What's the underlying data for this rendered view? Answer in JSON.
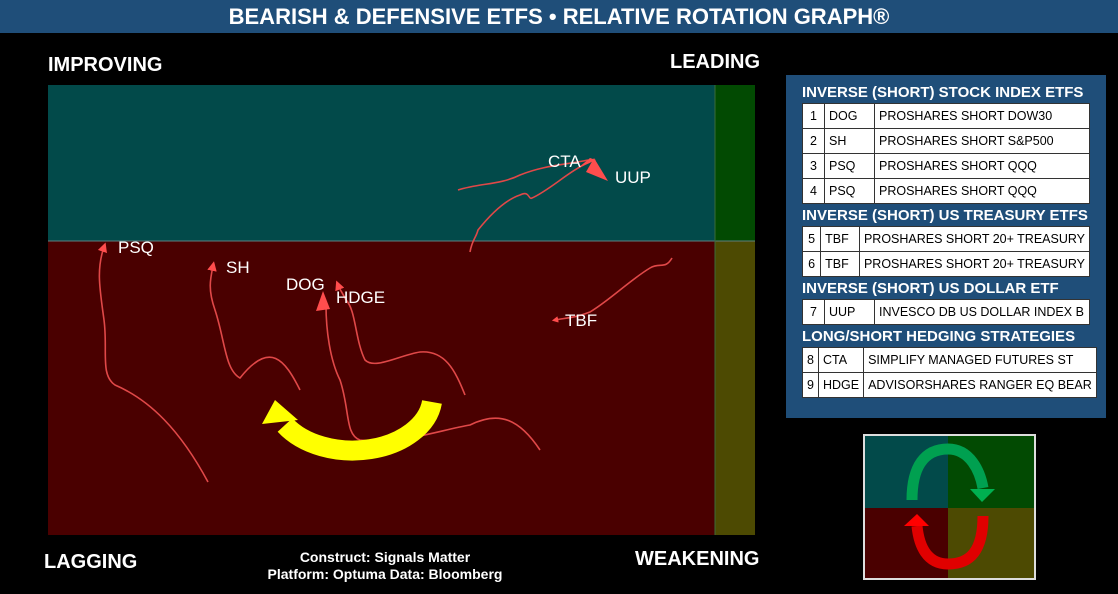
{
  "title": "BEARISH & DEFENSIVE ETFS • RELATIVE ROTATION GRAPH®",
  "quadrants": {
    "improving": "IMPROVING",
    "leading": "LEADING",
    "lagging": "LAGGING",
    "weakening": "WEAKENING"
  },
  "credits": {
    "line1": "Construct: Signals Matter",
    "line2": "Platform: Optuma  Data: Bloomberg"
  },
  "colors": {
    "improving": "#024a4a",
    "leading": "#024a02",
    "lagging": "#4a0000",
    "weakening": "#4d4a02",
    "tail": "#ff4d4d",
    "rotation_arrow": "#ffff00",
    "panel": "#1f4e79"
  },
  "chart_data": {
    "type": "scatter",
    "title": "Relative Rotation Graph",
    "quadrants": [
      "IMPROVING",
      "LEADING",
      "LAGGING",
      "WEAKENING"
    ],
    "series": [
      {
        "name": "PSQ",
        "quadrant": "LAGGING"
      },
      {
        "name": "SH",
        "quadrant": "LAGGING"
      },
      {
        "name": "DOG",
        "quadrant": "LAGGING"
      },
      {
        "name": "HDGE",
        "quadrant": "LAGGING"
      },
      {
        "name": "TBF",
        "quadrant": "LAGGING"
      },
      {
        "name": "CTA",
        "quadrant": "IMPROVING"
      },
      {
        "name": "UUP",
        "quadrant": "IMPROVING"
      }
    ],
    "grid": false
  },
  "legend": {
    "groups": [
      {
        "title": "INVERSE (SHORT) STOCK INDEX ETFS",
        "rows": [
          {
            "n": "1",
            "ticker": "DOG",
            "name": "PROSHARES SHORT DOW30"
          },
          {
            "n": "2",
            "ticker": "SH",
            "name": "PROSHARES SHORT S&P500"
          },
          {
            "n": "3",
            "ticker": "PSQ",
            "name": "PROSHARES SHORT QQQ"
          },
          {
            "n": "4",
            "ticker": "PSQ",
            "name": "PROSHARES SHORT QQQ"
          }
        ]
      },
      {
        "title": "INVERSE (SHORT) US TREASURY ETFS",
        "rows": [
          {
            "n": "5",
            "ticker": "TBF",
            "name": "PROSHARES SHORT 20+ TREASURY"
          },
          {
            "n": "6",
            "ticker": "TBF",
            "name": "PROSHARES SHORT 20+ TREASURY"
          }
        ]
      },
      {
        "title": "INVERSE (SHORT) US DOLLAR ETF",
        "rows": [
          {
            "n": "7",
            "ticker": "UUP",
            "name": "INVESCO DB US DOLLAR INDEX B"
          }
        ]
      },
      {
        "title": "LONG/SHORT HEDGING STRATEGIES",
        "rows": [
          {
            "n": "8",
            "ticker": "CTA",
            "name": "SIMPLIFY MANAGED FUTURES ST"
          },
          {
            "n": "9",
            "ticker": "HDGE",
            "name": "ADVISORSHARES RANGER EQ BEAR"
          }
        ]
      }
    ]
  }
}
